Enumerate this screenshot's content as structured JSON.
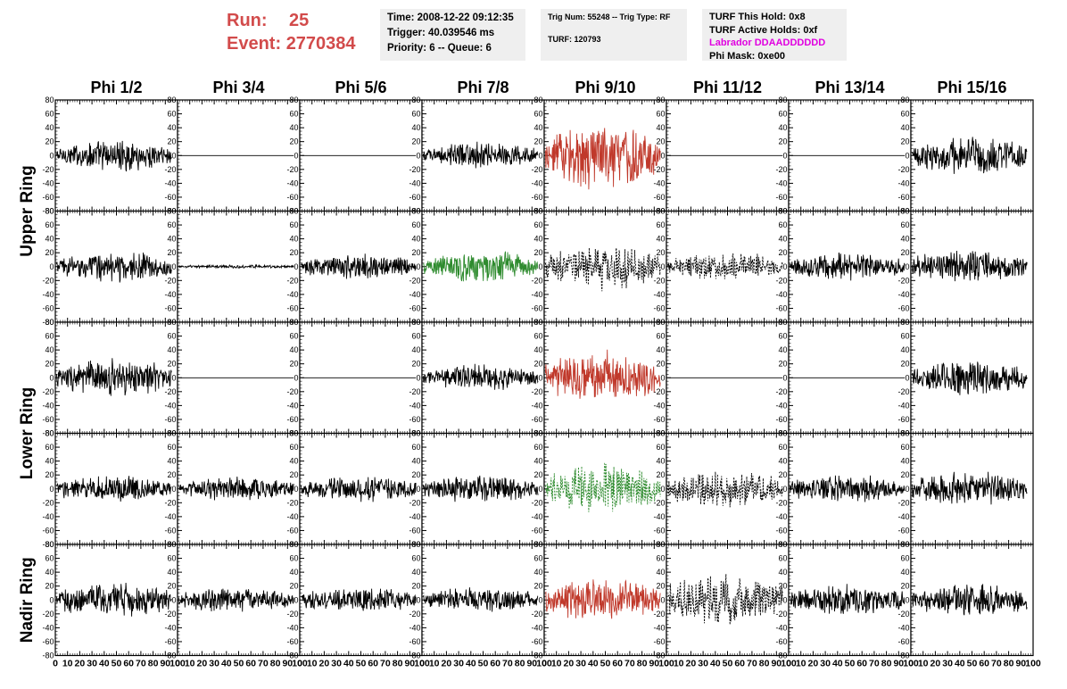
{
  "header": {
    "run_label": "Run:",
    "run_value": "25",
    "event_label": "Event:",
    "event_value": "2770384",
    "time": "Time: 2008-12-22 09:12:35",
    "trigger": "Trigger: 40.039546 ms",
    "priority": "Priority: 6 -- Queue: 6",
    "trig_num": "Trig Num: 55248 -- Trig Type: RF",
    "turf": "TURF: 120793",
    "turf_this_hold": "TURF This Hold: 0x8",
    "turf_active_holds": "TURF Active Holds: 0xf",
    "labrador": "Labrador DDAADDDDDD",
    "phi_mask": "Phi Mask: 0xe00"
  },
  "colors": {
    "run_text": "#d24b4b",
    "labrador_text": "#e000e0",
    "trace_default": "#000000",
    "trace_red": "#c0392b",
    "trace_green": "#2e8b2e",
    "panel_bg": "#ffffff"
  },
  "chart_data": {
    "type": "line",
    "title": "",
    "columns": [
      "Phi 1/2",
      "Phi 3/4",
      "Phi 5/6",
      "Phi 7/8",
      "Phi 9/10",
      "Phi 11/12",
      "Phi 13/14",
      "Phi 15/16"
    ],
    "ring_labels": [
      "Upper Ring",
      "Lower Ring",
      "Nadir Ring"
    ],
    "row_groups": [
      [
        0,
        1
      ],
      [
        2,
        3
      ],
      [
        4
      ]
    ],
    "ylim": [
      -80,
      80
    ],
    "yticks": [
      -80,
      -60,
      -40,
      -20,
      0,
      20,
      40,
      60,
      80
    ],
    "xlim": [
      0,
      100
    ],
    "xticks": [
      0,
      10,
      20,
      30,
      40,
      50,
      60,
      70,
      80,
      90,
      100
    ],
    "xtick_labels": [
      "0",
      "10",
      "20",
      "30",
      "40",
      "50",
      "60",
      "70",
      "80",
      "90",
      "100"
    ],
    "x_extent": 95,
    "panels": [
      [
        {
          "amp": 18,
          "style": "solid",
          "color": "black"
        },
        {
          "amp": 0,
          "style": "solid",
          "color": "black"
        },
        {
          "amp": 0,
          "style": "solid",
          "color": "black"
        },
        {
          "amp": 15,
          "style": "solid",
          "color": "black"
        },
        {
          "amp": 40,
          "style": "solid",
          "color": "red"
        },
        {
          "amp": 0,
          "style": "solid",
          "color": "black"
        },
        {
          "amp": 0,
          "style": "solid",
          "color": "black"
        },
        {
          "amp": 22,
          "style": "solid",
          "color": "black"
        }
      ],
      [
        {
          "amp": 17,
          "style": "solid",
          "color": "black"
        },
        {
          "amp": 2,
          "style": "solid",
          "color": "black"
        },
        {
          "amp": 15,
          "style": "solid",
          "color": "black"
        },
        {
          "amp": 20,
          "style": "solid",
          "color": "green"
        },
        {
          "amp": 26,
          "style": "dashed",
          "color": "black"
        },
        {
          "amp": 16,
          "style": "dashed",
          "color": "black"
        },
        {
          "amp": 16,
          "style": "solid",
          "color": "black"
        },
        {
          "amp": 20,
          "style": "solid",
          "color": "black"
        }
      ],
      [
        {
          "amp": 22,
          "style": "solid",
          "color": "black"
        },
        {
          "amp": 0,
          "style": "solid",
          "color": "black"
        },
        {
          "amp": 0,
          "style": "solid",
          "color": "black"
        },
        {
          "amp": 15,
          "style": "solid",
          "color": "black"
        },
        {
          "amp": 30,
          "style": "solid",
          "color": "red"
        },
        {
          "amp": 0,
          "style": "solid",
          "color": "black"
        },
        {
          "amp": 0,
          "style": "solid",
          "color": "black"
        },
        {
          "amp": 20,
          "style": "solid",
          "color": "black"
        }
      ],
      [
        {
          "amp": 16,
          "style": "solid",
          "color": "black"
        },
        {
          "amp": 14,
          "style": "solid",
          "color": "black"
        },
        {
          "amp": 15,
          "style": "solid",
          "color": "black"
        },
        {
          "amp": 16,
          "style": "solid",
          "color": "black"
        },
        {
          "amp": 28,
          "style": "dashed",
          "color": "green"
        },
        {
          "amp": 22,
          "style": "dashed",
          "color": "black"
        },
        {
          "amp": 16,
          "style": "solid",
          "color": "black"
        },
        {
          "amp": 20,
          "style": "solid",
          "color": "black"
        }
      ],
      [
        {
          "amp": 20,
          "style": "solid",
          "color": "black"
        },
        {
          "amp": 14,
          "style": "solid",
          "color": "black"
        },
        {
          "amp": 14,
          "style": "solid",
          "color": "black"
        },
        {
          "amp": 14,
          "style": "solid",
          "color": "black"
        },
        {
          "amp": 24,
          "style": "solid",
          "color": "red"
        },
        {
          "amp": 32,
          "style": "dashed",
          "color": "black"
        },
        {
          "amp": 18,
          "style": "solid",
          "color": "black"
        },
        {
          "amp": 20,
          "style": "solid",
          "color": "black"
        }
      ]
    ]
  }
}
